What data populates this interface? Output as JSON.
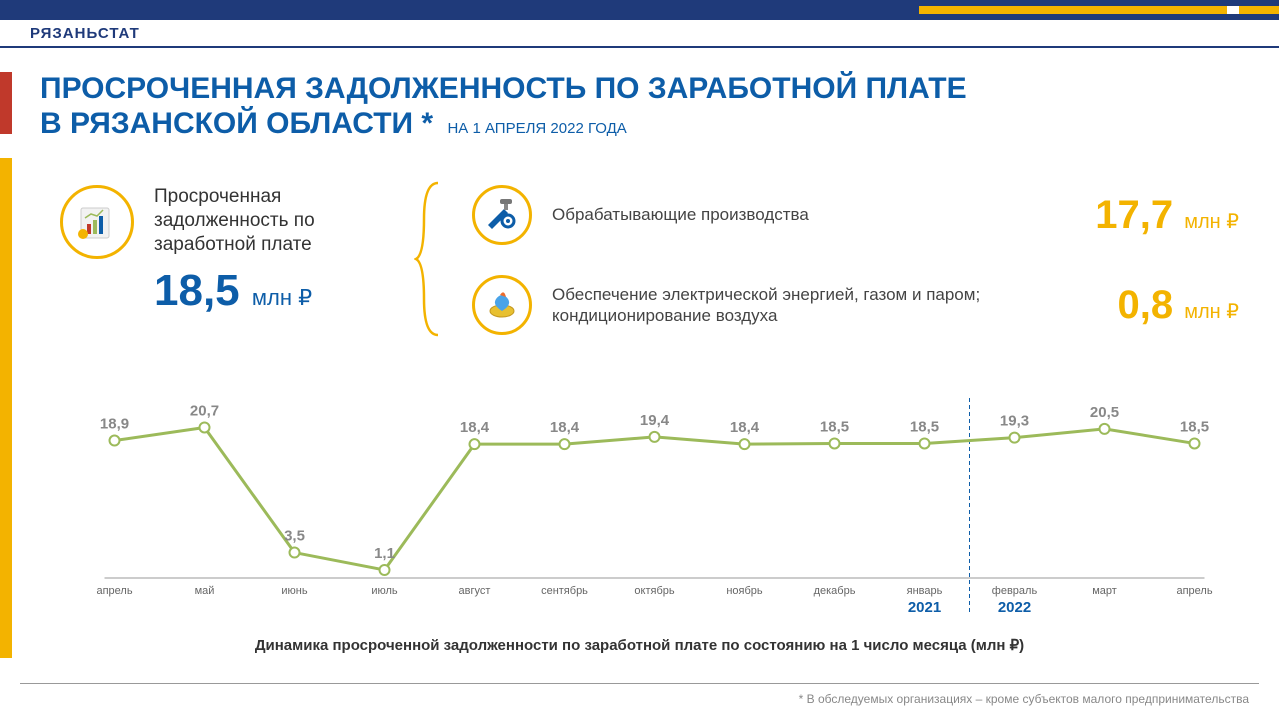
{
  "colors": {
    "navy": "#1f3a7a",
    "blue": "#0d5da8",
    "yellow": "#f3b300",
    "red": "#c0392b",
    "line": "#9cba5a",
    "marker_fill": "#ffffff",
    "text": "#333333",
    "axis": "#666666",
    "label_text": "#888888"
  },
  "brand": "РЯЗАНЬСТАТ",
  "title": {
    "line1": "ПРОСРОЧЕННАЯ ЗАДОЛЖЕННОСТЬ ПО ЗАРАБОТНОЙ ПЛАТЕ",
    "line2": "В РЯЗАНСКОЙ ОБЛАСТИ *",
    "date": "НА 1 АПРЕЛЯ 2022 ГОДА"
  },
  "summary": {
    "label": "Просроченная задолженность по заработной плате",
    "value": "18,5",
    "unit": "млн ₽"
  },
  "sectors": [
    {
      "icon": "tools-icon",
      "label": "Обрабатывающие производства",
      "value": "17,7",
      "unit": "млн ₽"
    },
    {
      "icon": "energy-icon",
      "label": "Обеспечение электрической энергией, газом и паром; кондиционирование воздуха",
      "value": "0,8",
      "unit": "млн ₽"
    }
  ],
  "chart": {
    "type": "line",
    "caption": "Динамика просроченной задолженности по заработной плате по состоянию на 1 число месяца (млн ₽)",
    "line_color": "#9cba5a",
    "line_width": 3,
    "marker_radius": 5,
    "marker_stroke": "#9cba5a",
    "marker_fill": "#ffffff",
    "data_label_color": "#888888",
    "data_label_fontsize": 15,
    "xlabel_fontsize": 11,
    "xlabel_color": "#666666",
    "ymin": 0,
    "ymax": 22,
    "year_divider_after_index": 9,
    "year_labels": [
      {
        "text": "2021",
        "index": 9
      },
      {
        "text": "2022",
        "index": 10
      }
    ],
    "points": [
      {
        "x": "апрель",
        "y": 18.9,
        "label": "18,9"
      },
      {
        "x": "май",
        "y": 20.7,
        "label": "20,7"
      },
      {
        "x": "июнь",
        "y": 3.5,
        "label": "3,5"
      },
      {
        "x": "июль",
        "y": 1.1,
        "label": "1,1"
      },
      {
        "x": "август",
        "y": 18.4,
        "label": "18,4"
      },
      {
        "x": "сентябрь",
        "y": 18.4,
        "label": "18,4"
      },
      {
        "x": "октябрь",
        "y": 19.4,
        "label": "19,4"
      },
      {
        "x": "ноябрь",
        "y": 18.4,
        "label": "18,4"
      },
      {
        "x": "декабрь",
        "y": 18.5,
        "label": "18,5"
      },
      {
        "x": "январь",
        "y": 18.5,
        "label": "18,5"
      },
      {
        "x": "февраль",
        "y": 19.3,
        "label": "19,3"
      },
      {
        "x": "март",
        "y": 20.5,
        "label": "20,5"
      },
      {
        "x": "апрель",
        "y": 18.5,
        "label": "18,5"
      }
    ]
  },
  "footnote": "* В обследуемых организациях – кроме субъектов малого предпринимательства"
}
